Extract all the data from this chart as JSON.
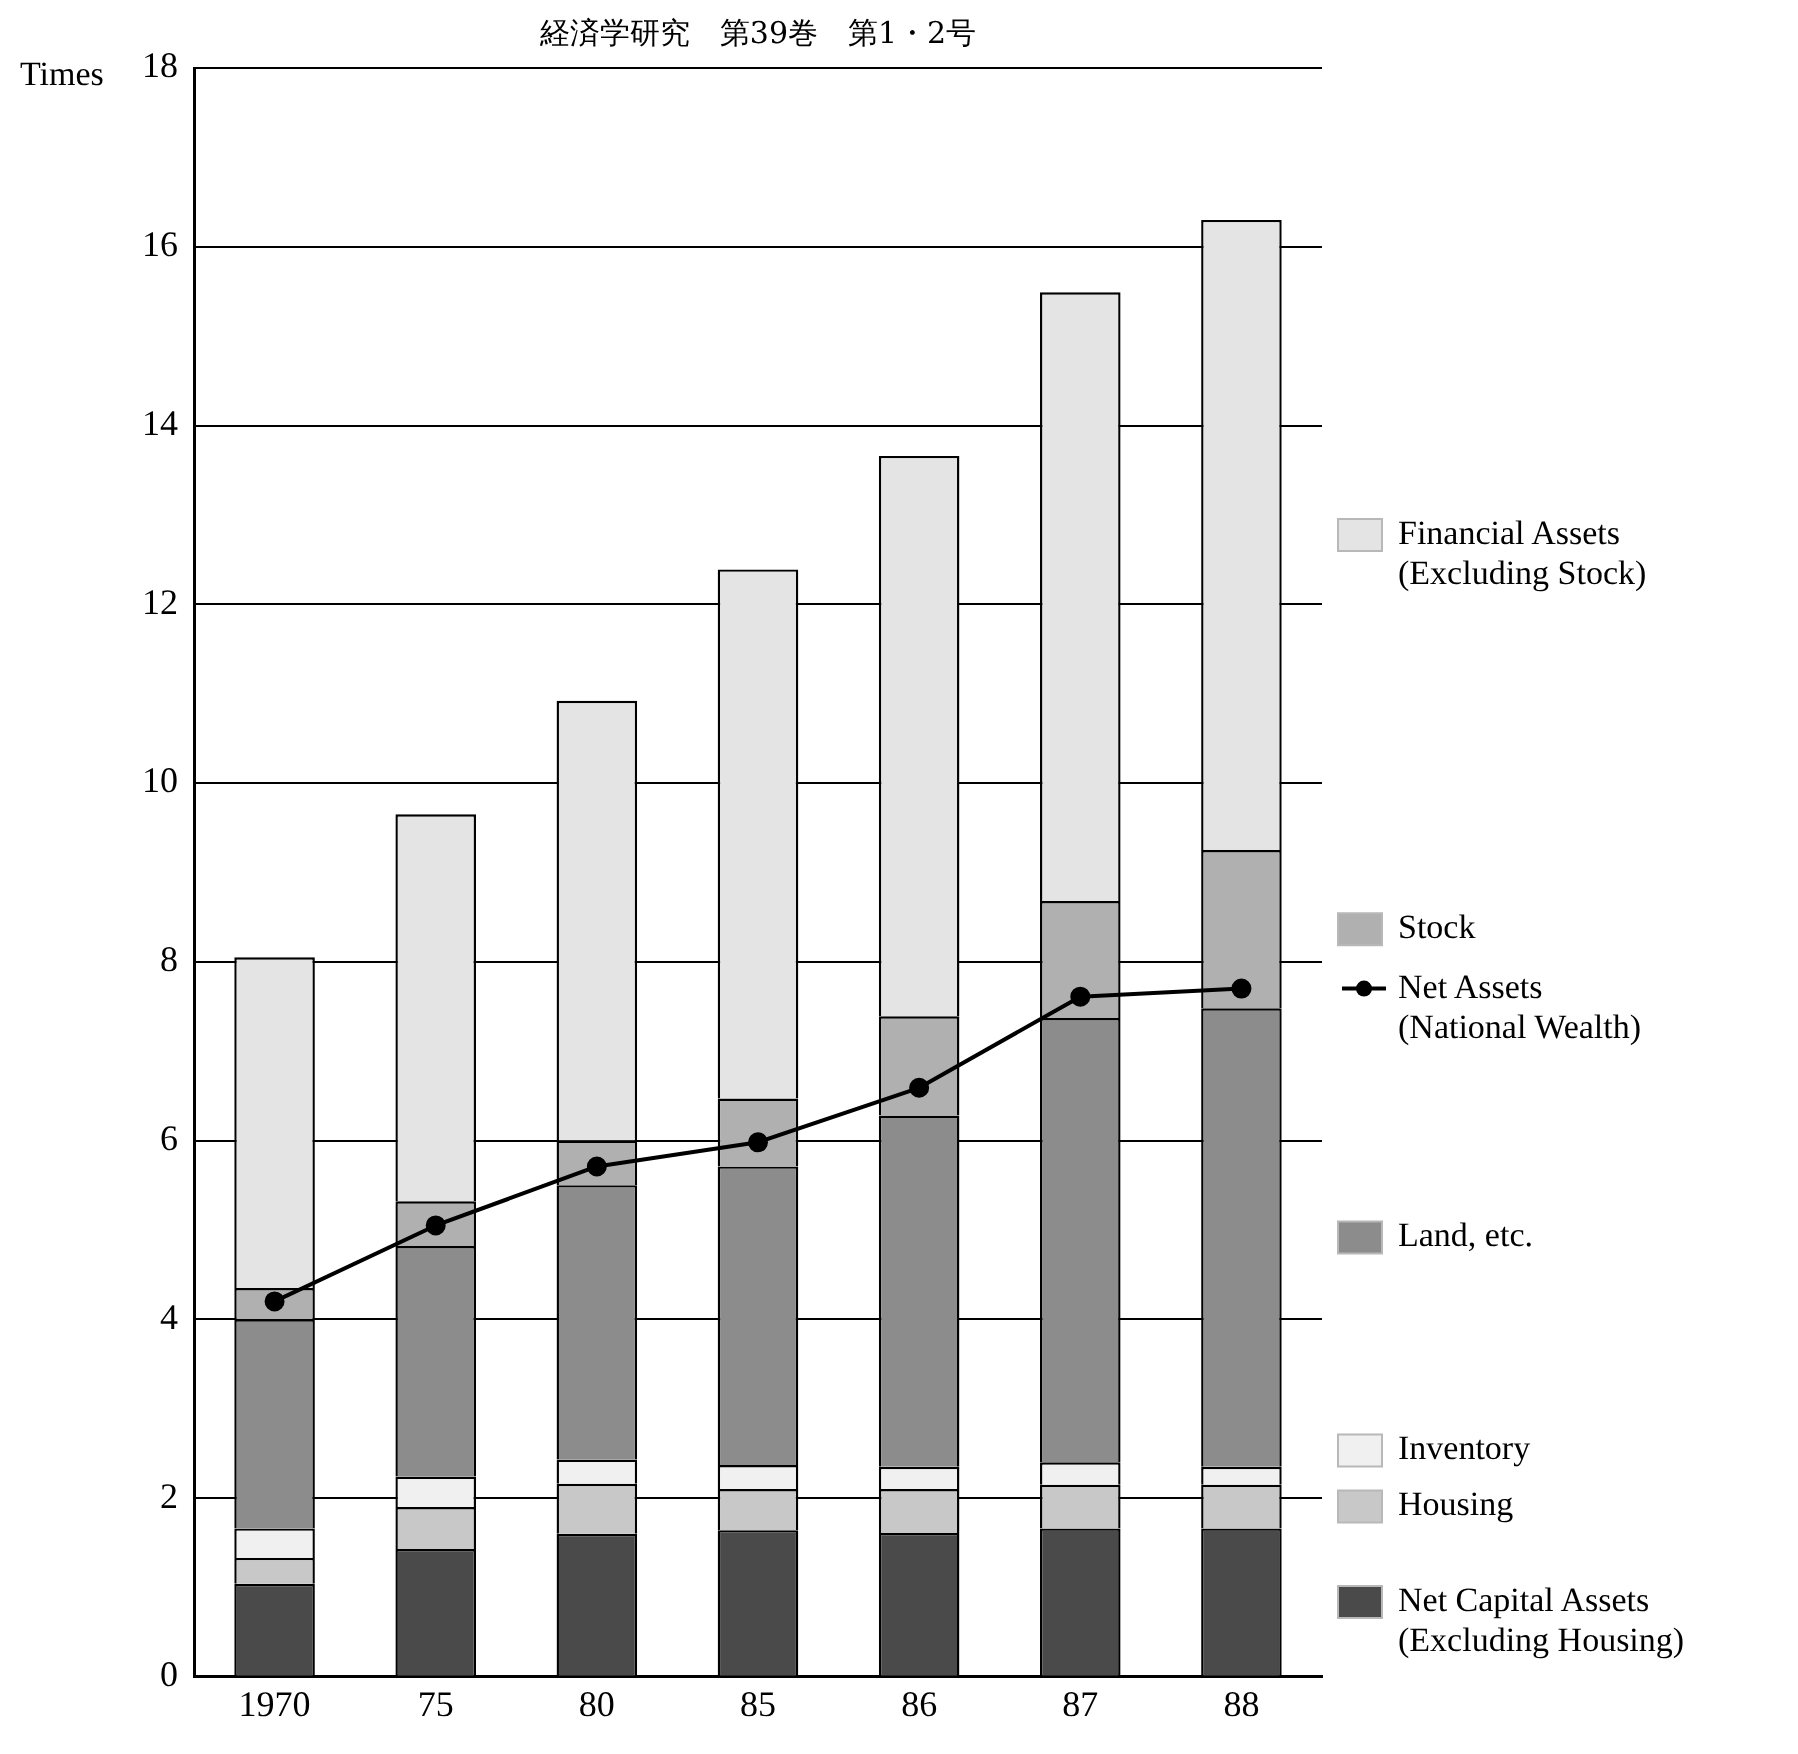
{
  "chart_data": {
    "type": "bar",
    "stacked": true,
    "ylabel": "Times",
    "annotations": [
      "経済学研究　第39巻　第1・2号"
    ],
    "categories": [
      "1970",
      "75",
      "80",
      "85",
      "86",
      "87",
      "88"
    ],
    "series": [
      {
        "name": "Net Capital Assets (Excluding Housing)",
        "color": "#4a4a4a",
        "values": [
          1.04,
          1.43,
          1.6,
          1.64,
          1.61,
          1.66,
          1.66
        ]
      },
      {
        "name": "Housing",
        "color": "#c8c8c8",
        "values": [
          0.29,
          0.47,
          0.56,
          0.46,
          0.49,
          0.49,
          0.49
        ]
      },
      {
        "name": "Inventory",
        "color": "#f0f0f0",
        "values": [
          0.33,
          0.34,
          0.27,
          0.27,
          0.25,
          0.25,
          0.2
        ]
      },
      {
        "name": "Land, etc.",
        "color": "#8c8c8c",
        "values": [
          2.34,
          2.58,
          3.07,
          3.34,
          3.93,
          4.97,
          5.13
        ]
      },
      {
        "name": "Stock",
        "color": "#b0b0b0",
        "values": [
          0.35,
          0.5,
          0.5,
          0.76,
          1.11,
          1.31,
          1.77
        ]
      },
      {
        "name": "Financial Assets (Excluding Stock)",
        "color": "#e4e4e4",
        "values": [
          3.7,
          4.33,
          4.92,
          5.92,
          6.27,
          6.81,
          7.05
        ]
      },
      {
        "name": "Net Assets (National Wealth)",
        "type": "line",
        "color": "#000000",
        "marker": "circle",
        "values": [
          4.2,
          5.05,
          5.71,
          5.98,
          6.59,
          7.61,
          7.7
        ]
      }
    ],
    "ylim": [
      0,
      18
    ],
    "yticks": [
      0,
      2,
      4,
      6,
      8,
      10,
      12,
      14,
      16,
      18
    ],
    "grid": "y",
    "legend": "right"
  }
}
